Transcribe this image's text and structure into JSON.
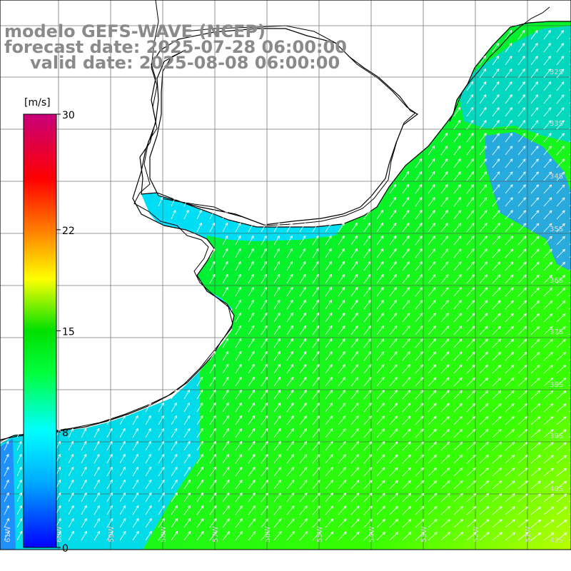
{
  "title": {
    "model": "modelo GEFS-WAVE (NCEP)",
    "forecast": "forecast date: 2025-07-28 06:00:00",
    "valid": "valid date: 2025-08-08 06:00:00"
  },
  "colorbar": {
    "unit": "[m/s]",
    "ticks": [
      "30",
      "22",
      "15",
      "8",
      "0"
    ],
    "tick_values": [
      30,
      22,
      15,
      8,
      0
    ],
    "range": [
      0,
      30
    ],
    "colors": [
      "#0000ff",
      "#00b4ff",
      "#00ffff",
      "#00ff00",
      "#ffff00",
      "#ff8000",
      "#ff0000",
      "#c8007a"
    ]
  },
  "map": {
    "field": "wind speed (m/s) with direction arrows",
    "lon_labels": [
      "61W",
      "60W",
      "59W",
      "58W",
      "57W",
      "56W",
      "55W",
      "54W",
      "53W",
      "52W",
      "51W"
    ],
    "lat_labels": [
      "32S",
      "33S",
      "34S",
      "35S",
      "36S",
      "37S",
      "38S",
      "39S",
      "40S",
      "41S"
    ],
    "land_color": "#ffffff",
    "grid_color": "#555555",
    "arrow_color": "#ffffff",
    "speed_regime": "mostly 8-14 m/s, southwesterly flow",
    "ocean_colors": {
      "light": "#00e6ff",
      "medium": "#00f028",
      "strong": "#7cff00",
      "calm": "#0070ff"
    }
  }
}
